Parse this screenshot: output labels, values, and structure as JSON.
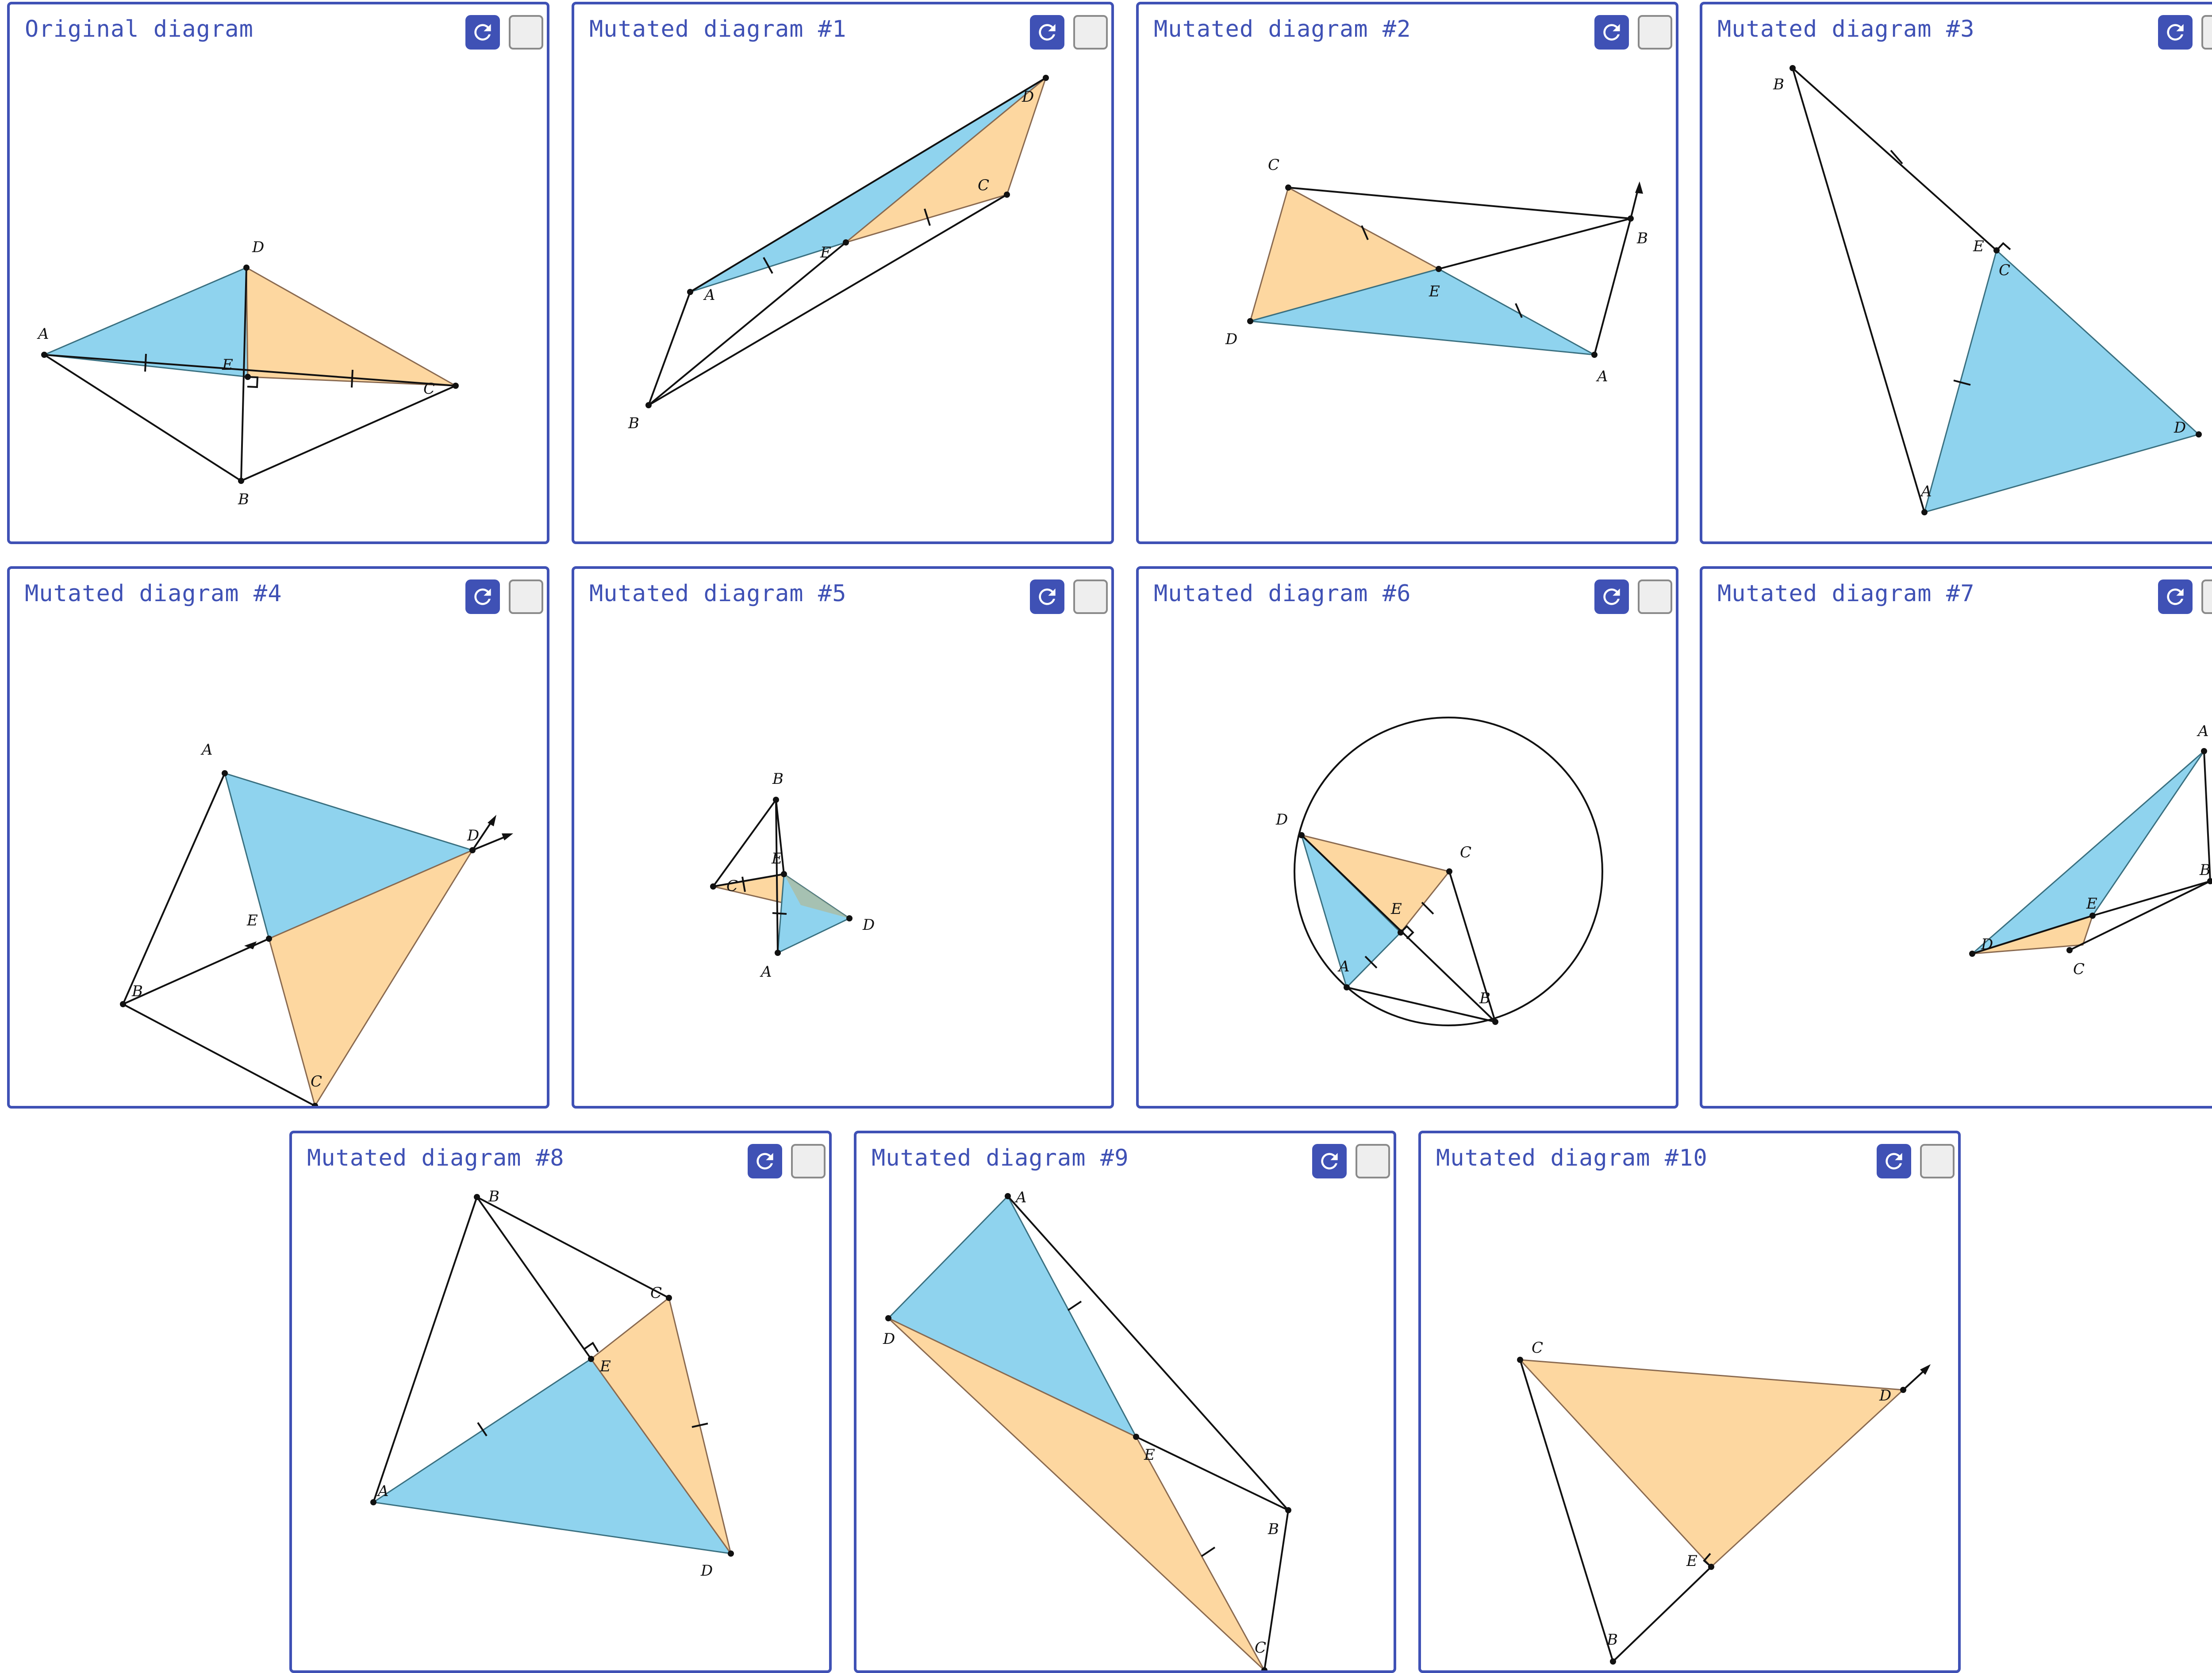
{
  "panels": [
    {
      "title": "Original diagram",
      "labels": [
        "A",
        "B",
        "C",
        "D",
        "E"
      ]
    },
    {
      "title": "Mutated diagram #1",
      "labels": [
        "A",
        "B",
        "C",
        "D",
        "E"
      ]
    },
    {
      "title": "Mutated diagram #2",
      "labels": [
        "A",
        "B",
        "C",
        "D",
        "E"
      ]
    },
    {
      "title": "Mutated diagram #3",
      "labels": [
        "A",
        "B",
        "C",
        "D",
        "E"
      ]
    },
    {
      "title": "Mutated diagram #4",
      "labels": [
        "A",
        "B",
        "C",
        "D",
        "E"
      ]
    },
    {
      "title": "Mutated diagram #5",
      "labels": [
        "A",
        "B",
        "C",
        "D",
        "E"
      ]
    },
    {
      "title": "Mutated diagram #6",
      "labels": [
        "A",
        "B",
        "C",
        "D",
        "E"
      ]
    },
    {
      "title": "Mutated diagram #7",
      "labels": [
        "A",
        "B",
        "C",
        "D",
        "E"
      ]
    },
    {
      "title": "Mutated diagram #8",
      "labels": [
        "A",
        "B",
        "C",
        "D",
        "E"
      ]
    },
    {
      "title": "Mutated diagram #9",
      "labels": [
        "A",
        "B",
        "C",
        "D",
        "E"
      ]
    },
    {
      "title": "Mutated diagram #10",
      "labels": [
        "B",
        "C",
        "D",
        "E"
      ]
    }
  ],
  "icons": {
    "refresh": "refresh-icon",
    "checkbox": "checkbox"
  },
  "colors": {
    "accent": "#3f51b5",
    "blue_fill": "#8fd3ee",
    "orange_fill": "#fdd7a0"
  }
}
